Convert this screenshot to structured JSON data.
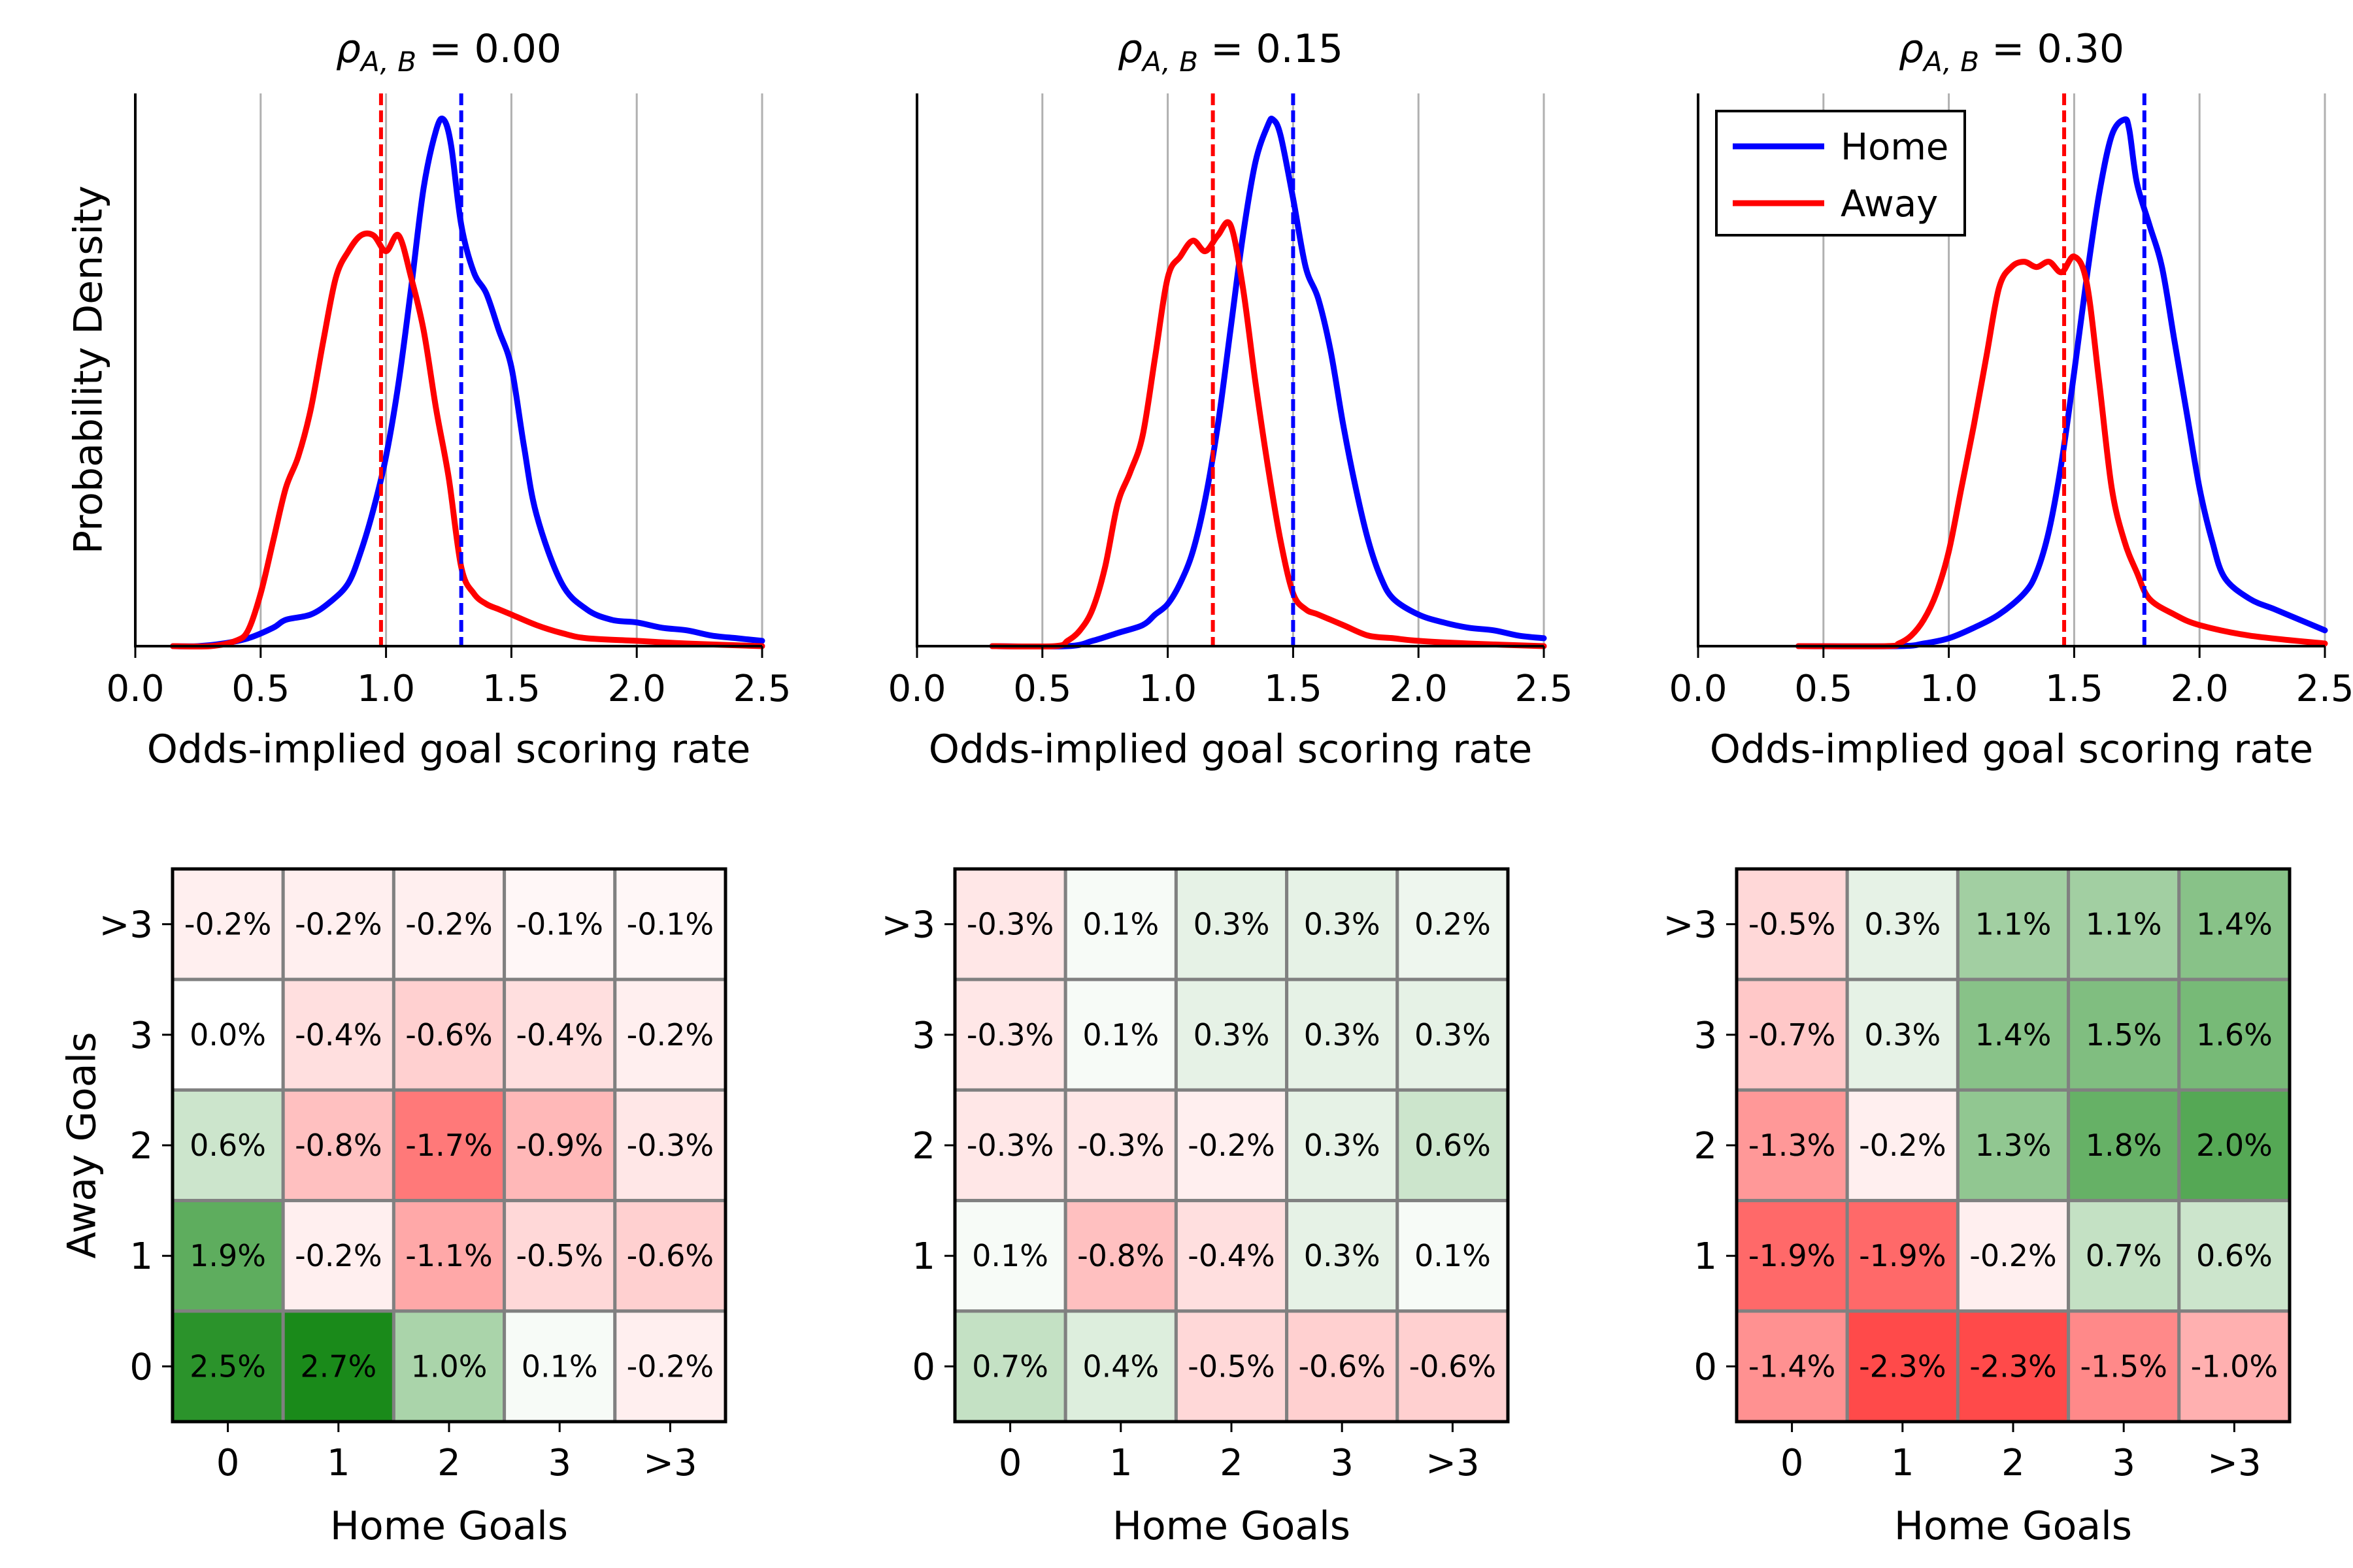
{
  "figure": {
    "label_fontsize_hint": "matplotlib default"
  },
  "colors": {
    "home": "#0000ff",
    "away": "#ff0000",
    "grid": "#b0b0b0",
    "cell_border": "#808080",
    "positive": "#1a8a1a",
    "negative": "#ff2a2a"
  },
  "chart_data": [
    {
      "type": "line",
      "title_prefix": "ρ",
      "title_sub": "A, B",
      "title_suffix": " = 0.00",
      "xlabel": "Odds-implied goal scoring rate",
      "ylabel": "Probability Density",
      "xlim": [
        0.0,
        2.5
      ],
      "xticks": [
        "0.0",
        "0.5",
        "1.0",
        "1.5",
        "2.0",
        "2.5"
      ],
      "grid": "vertical",
      "legend": null,
      "series": [
        {
          "name": "Home",
          "color": "#0000ff",
          "x": [
            0.15,
            0.25,
            0.35,
            0.45,
            0.55,
            0.6,
            0.7,
            0.78,
            0.85,
            0.9,
            0.95,
            1.0,
            1.05,
            1.1,
            1.15,
            1.2,
            1.23,
            1.26,
            1.3,
            1.35,
            1.4,
            1.45,
            1.5,
            1.55,
            1.6,
            1.7,
            1.8,
            1.9,
            2.0,
            2.1,
            2.2,
            2.3,
            2.4,
            2.5
          ],
          "y": [
            0.0,
            0.0,
            0.005,
            0.015,
            0.035,
            0.05,
            0.06,
            0.085,
            0.12,
            0.18,
            0.26,
            0.36,
            0.5,
            0.68,
            0.87,
            0.98,
            1.0,
            0.95,
            0.8,
            0.71,
            0.67,
            0.6,
            0.53,
            0.38,
            0.25,
            0.12,
            0.07,
            0.05,
            0.045,
            0.035,
            0.03,
            0.02,
            0.015,
            0.01
          ]
        },
        {
          "name": "Away",
          "color": "#ff0000",
          "x": [
            0.15,
            0.3,
            0.4,
            0.45,
            0.5,
            0.55,
            0.6,
            0.65,
            0.7,
            0.75,
            0.8,
            0.85,
            0.9,
            0.95,
            1.0,
            1.05,
            1.1,
            1.15,
            1.2,
            1.25,
            1.3,
            1.35,
            1.4,
            1.45,
            1.5,
            1.6,
            1.7,
            1.8,
            2.0,
            2.2,
            2.5
          ],
          "y": [
            0.0,
            0.0,
            0.01,
            0.03,
            0.1,
            0.2,
            0.3,
            0.36,
            0.45,
            0.58,
            0.7,
            0.75,
            0.78,
            0.78,
            0.75,
            0.78,
            0.7,
            0.6,
            0.45,
            0.32,
            0.15,
            0.1,
            0.08,
            0.07,
            0.06,
            0.04,
            0.025,
            0.015,
            0.01,
            0.005,
            0.0
          ]
        }
      ],
      "vlines": [
        {
          "series": "Away",
          "x": 0.98,
          "color": "#ff0000"
        },
        {
          "series": "Home",
          "x": 1.3,
          "color": "#0000ff"
        }
      ]
    },
    {
      "type": "line",
      "title_prefix": "ρ",
      "title_sub": "A, B",
      "title_suffix": " = 0.15",
      "xlabel": "Odds-implied goal scoring rate",
      "ylabel": "",
      "xlim": [
        0.0,
        2.5
      ],
      "xticks": [
        "0.0",
        "0.5",
        "1.0",
        "1.5",
        "2.0",
        "2.5"
      ],
      "grid": "vertical",
      "legend": null,
      "series": [
        {
          "name": "Home",
          "color": "#0000ff",
          "x": [
            0.3,
            0.6,
            0.7,
            0.8,
            0.9,
            0.95,
            1.0,
            1.05,
            1.1,
            1.15,
            1.2,
            1.25,
            1.3,
            1.35,
            1.4,
            1.42,
            1.45,
            1.5,
            1.55,
            1.6,
            1.65,
            1.7,
            1.75,
            1.8,
            1.85,
            1.9,
            2.0,
            2.1,
            2.2,
            2.3,
            2.4,
            2.5
          ],
          "y": [
            0.0,
            0.0,
            0.01,
            0.025,
            0.04,
            0.06,
            0.08,
            0.12,
            0.18,
            0.28,
            0.42,
            0.6,
            0.78,
            0.92,
            0.99,
            1.0,
            0.97,
            0.85,
            0.72,
            0.66,
            0.56,
            0.42,
            0.3,
            0.2,
            0.13,
            0.09,
            0.06,
            0.045,
            0.035,
            0.03,
            0.02,
            0.015
          ]
        },
        {
          "name": "Away",
          "color": "#ff0000",
          "x": [
            0.3,
            0.55,
            0.6,
            0.65,
            0.7,
            0.75,
            0.8,
            0.85,
            0.9,
            0.95,
            1.0,
            1.05,
            1.1,
            1.15,
            1.2,
            1.25,
            1.3,
            1.35,
            1.4,
            1.45,
            1.5,
            1.55,
            1.6,
            1.7,
            1.8,
            1.9,
            2.0,
            2.2,
            2.5
          ],
          "y": [
            0.0,
            0.0,
            0.01,
            0.03,
            0.07,
            0.15,
            0.27,
            0.33,
            0.4,
            0.55,
            0.7,
            0.74,
            0.77,
            0.75,
            0.78,
            0.8,
            0.68,
            0.5,
            0.34,
            0.2,
            0.1,
            0.07,
            0.06,
            0.04,
            0.02,
            0.015,
            0.01,
            0.005,
            0.0
          ]
        }
      ],
      "vlines": [
        {
          "series": "Away",
          "x": 1.18,
          "color": "#ff0000"
        },
        {
          "series": "Home",
          "x": 1.5,
          "color": "#0000ff"
        }
      ]
    },
    {
      "type": "line",
      "title_prefix": "ρ",
      "title_sub": "A, B",
      "title_suffix": " = 0.30",
      "xlabel": "Odds-implied goal scoring rate",
      "ylabel": "",
      "xlim": [
        0.0,
        2.5
      ],
      "xticks": [
        "0.0",
        "0.5",
        "1.0",
        "1.5",
        "2.0",
        "2.5"
      ],
      "grid": "vertical",
      "legend": {
        "position": "top-left",
        "entries": [
          "Home",
          "Away"
        ]
      },
      "series": [
        {
          "name": "Home",
          "color": "#0000ff",
          "x": [
            0.4,
            0.8,
            0.9,
            1.0,
            1.1,
            1.2,
            1.3,
            1.35,
            1.4,
            1.45,
            1.5,
            1.55,
            1.6,
            1.65,
            1.7,
            1.72,
            1.75,
            1.8,
            1.85,
            1.9,
            1.95,
            2.0,
            2.05,
            2.1,
            2.2,
            2.3,
            2.4,
            2.5
          ],
          "y": [
            0.0,
            0.0,
            0.005,
            0.015,
            0.035,
            0.06,
            0.1,
            0.14,
            0.22,
            0.35,
            0.52,
            0.7,
            0.86,
            0.97,
            1.0,
            0.98,
            0.88,
            0.8,
            0.72,
            0.58,
            0.44,
            0.3,
            0.2,
            0.13,
            0.09,
            0.07,
            0.05,
            0.03
          ]
        },
        {
          "name": "Away",
          "color": "#ff0000",
          "x": [
            0.4,
            0.75,
            0.8,
            0.85,
            0.9,
            0.95,
            1.0,
            1.05,
            1.1,
            1.15,
            1.2,
            1.25,
            1.3,
            1.35,
            1.4,
            1.45,
            1.5,
            1.55,
            1.6,
            1.65,
            1.7,
            1.75,
            1.8,
            1.9,
            2.0,
            2.2,
            2.5
          ],
          "y": [
            0.0,
            0.0,
            0.005,
            0.02,
            0.05,
            0.1,
            0.18,
            0.3,
            0.42,
            0.55,
            0.68,
            0.72,
            0.73,
            0.72,
            0.73,
            0.71,
            0.74,
            0.69,
            0.5,
            0.3,
            0.2,
            0.14,
            0.09,
            0.06,
            0.04,
            0.02,
            0.005
          ]
        }
      ],
      "vlines": [
        {
          "series": "Away",
          "x": 1.46,
          "color": "#ff0000"
        },
        {
          "series": "Home",
          "x": 1.78,
          "color": "#0000ff"
        }
      ]
    },
    {
      "type": "heatmap",
      "xlabel": "Home Goals",
      "ylabel": "Away Goals",
      "xticks": [
        "0",
        "1",
        "2",
        "3",
        ">3"
      ],
      "yticks": [
        ">3",
        "3",
        "2",
        "1",
        "0"
      ],
      "values": [
        [
          -0.2,
          -0.2,
          -0.2,
          -0.1,
          -0.1
        ],
        [
          0.0,
          -0.4,
          -0.6,
          -0.4,
          -0.2
        ],
        [
          0.6,
          -0.8,
          -1.7,
          -0.9,
          -0.3
        ],
        [
          1.9,
          -0.2,
          -1.1,
          -0.5,
          -0.6
        ],
        [
          2.5,
          2.7,
          1.0,
          0.1,
          -0.2
        ]
      ],
      "labels": [
        [
          "-0.2%",
          "-0.2%",
          "-0.2%",
          "-0.1%",
          "-0.1%"
        ],
        [
          "0.0%",
          "-0.4%",
          "-0.6%",
          "-0.4%",
          "-0.2%"
        ],
        [
          "0.6%",
          "-0.8%",
          "-1.7%",
          "-0.9%",
          "-0.3%"
        ],
        [
          "1.9%",
          "-0.2%",
          "-1.1%",
          "-0.5%",
          "-0.6%"
        ],
        [
          "2.5%",
          "2.7%",
          "1.0%",
          "0.1%",
          "-0.2%"
        ]
      ]
    },
    {
      "type": "heatmap",
      "xlabel": "Home Goals",
      "ylabel": "",
      "xticks": [
        "0",
        "1",
        "2",
        "3",
        ">3"
      ],
      "yticks": [
        ">3",
        "3",
        "2",
        "1",
        "0"
      ],
      "values": [
        [
          -0.3,
          0.1,
          0.3,
          0.3,
          0.2
        ],
        [
          -0.3,
          0.1,
          0.3,
          0.3,
          0.3
        ],
        [
          -0.3,
          -0.3,
          -0.2,
          0.3,
          0.6
        ],
        [
          0.1,
          -0.8,
          -0.4,
          0.3,
          0.1
        ],
        [
          0.7,
          0.4,
          -0.5,
          -0.6,
          -0.6
        ]
      ],
      "labels": [
        [
          "-0.3%",
          "0.1%",
          "0.3%",
          "0.3%",
          "0.2%"
        ],
        [
          "-0.3%",
          "0.1%",
          "0.3%",
          "0.3%",
          "0.3%"
        ],
        [
          "-0.3%",
          "-0.3%",
          "-0.2%",
          "0.3%",
          "0.6%"
        ],
        [
          "0.1%",
          "-0.8%",
          "-0.4%",
          "0.3%",
          "0.1%"
        ],
        [
          "0.7%",
          "0.4%",
          "-0.5%",
          "-0.6%",
          "-0.6%"
        ]
      ]
    },
    {
      "type": "heatmap",
      "xlabel": "Home Goals",
      "ylabel": "",
      "xticks": [
        "0",
        "1",
        "2",
        "3",
        ">3"
      ],
      "yticks": [
        ">3",
        "3",
        "2",
        "1",
        "0"
      ],
      "values": [
        [
          -0.5,
          0.3,
          1.1,
          1.1,
          1.4
        ],
        [
          -0.7,
          0.3,
          1.4,
          1.5,
          1.6
        ],
        [
          -1.3,
          -0.2,
          1.3,
          1.8,
          2.0
        ],
        [
          -1.9,
          -1.9,
          -0.2,
          0.7,
          0.6
        ],
        [
          -1.4,
          -2.3,
          -2.3,
          -1.5,
          -1.0
        ]
      ],
      "labels": [
        [
          "-0.5%",
          "0.3%",
          "1.1%",
          "1.1%",
          "1.4%"
        ],
        [
          "-0.7%",
          "0.3%",
          "1.4%",
          "1.5%",
          "1.6%"
        ],
        [
          "-1.3%",
          "-0.2%",
          "1.3%",
          "1.8%",
          "2.0%"
        ],
        [
          "-1.9%",
          "-1.9%",
          "-0.2%",
          "0.7%",
          "0.6%"
        ],
        [
          "-1.4%",
          "-2.3%",
          "-2.3%",
          "-1.5%",
          "-1.0%"
        ]
      ]
    }
  ]
}
